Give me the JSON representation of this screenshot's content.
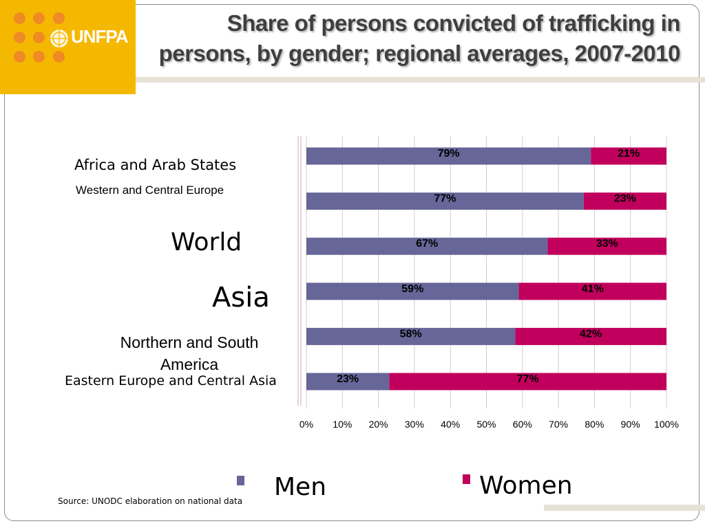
{
  "logo": {
    "text": "UNFPA"
  },
  "title": {
    "line1": "Share of persons convicted of trafficking in",
    "line2": "persons, by gender; regional averages, 2007-2010"
  },
  "chart_data": {
    "type": "bar",
    "orientation": "horizontal",
    "stacked": true,
    "categories": [
      "Africa and Arab States",
      "Western and Central Europe",
      "World",
      "Asia",
      "Northern and South America",
      "Eastern Europe and Central Asia"
    ],
    "series": [
      {
        "name": "Men",
        "values": [
          79,
          77,
          67,
          59,
          58,
          23
        ],
        "labels": [
          "79%",
          "77%",
          "67%",
          "59%",
          "58%",
          "23%"
        ]
      },
      {
        "name": "Women",
        "values": [
          21,
          23,
          33,
          41,
          42,
          77
        ],
        "labels": [
          "21%",
          "23%",
          "33%",
          "41%",
          "42%",
          "77%"
        ]
      }
    ],
    "xlim": [
      0,
      100
    ],
    "xticks": [
      "0%",
      "10%",
      "20%",
      "30%",
      "40%",
      "50%",
      "60%",
      "70%",
      "80%",
      "90%",
      "100%"
    ],
    "grid": true,
    "legend_placement": "bottom"
  },
  "colors": {
    "men": "#666699",
    "women": "#c0005c"
  },
  "legend": {
    "men": "Men",
    "women": "Women"
  },
  "source": "Source: UNODC elaboration on national data"
}
